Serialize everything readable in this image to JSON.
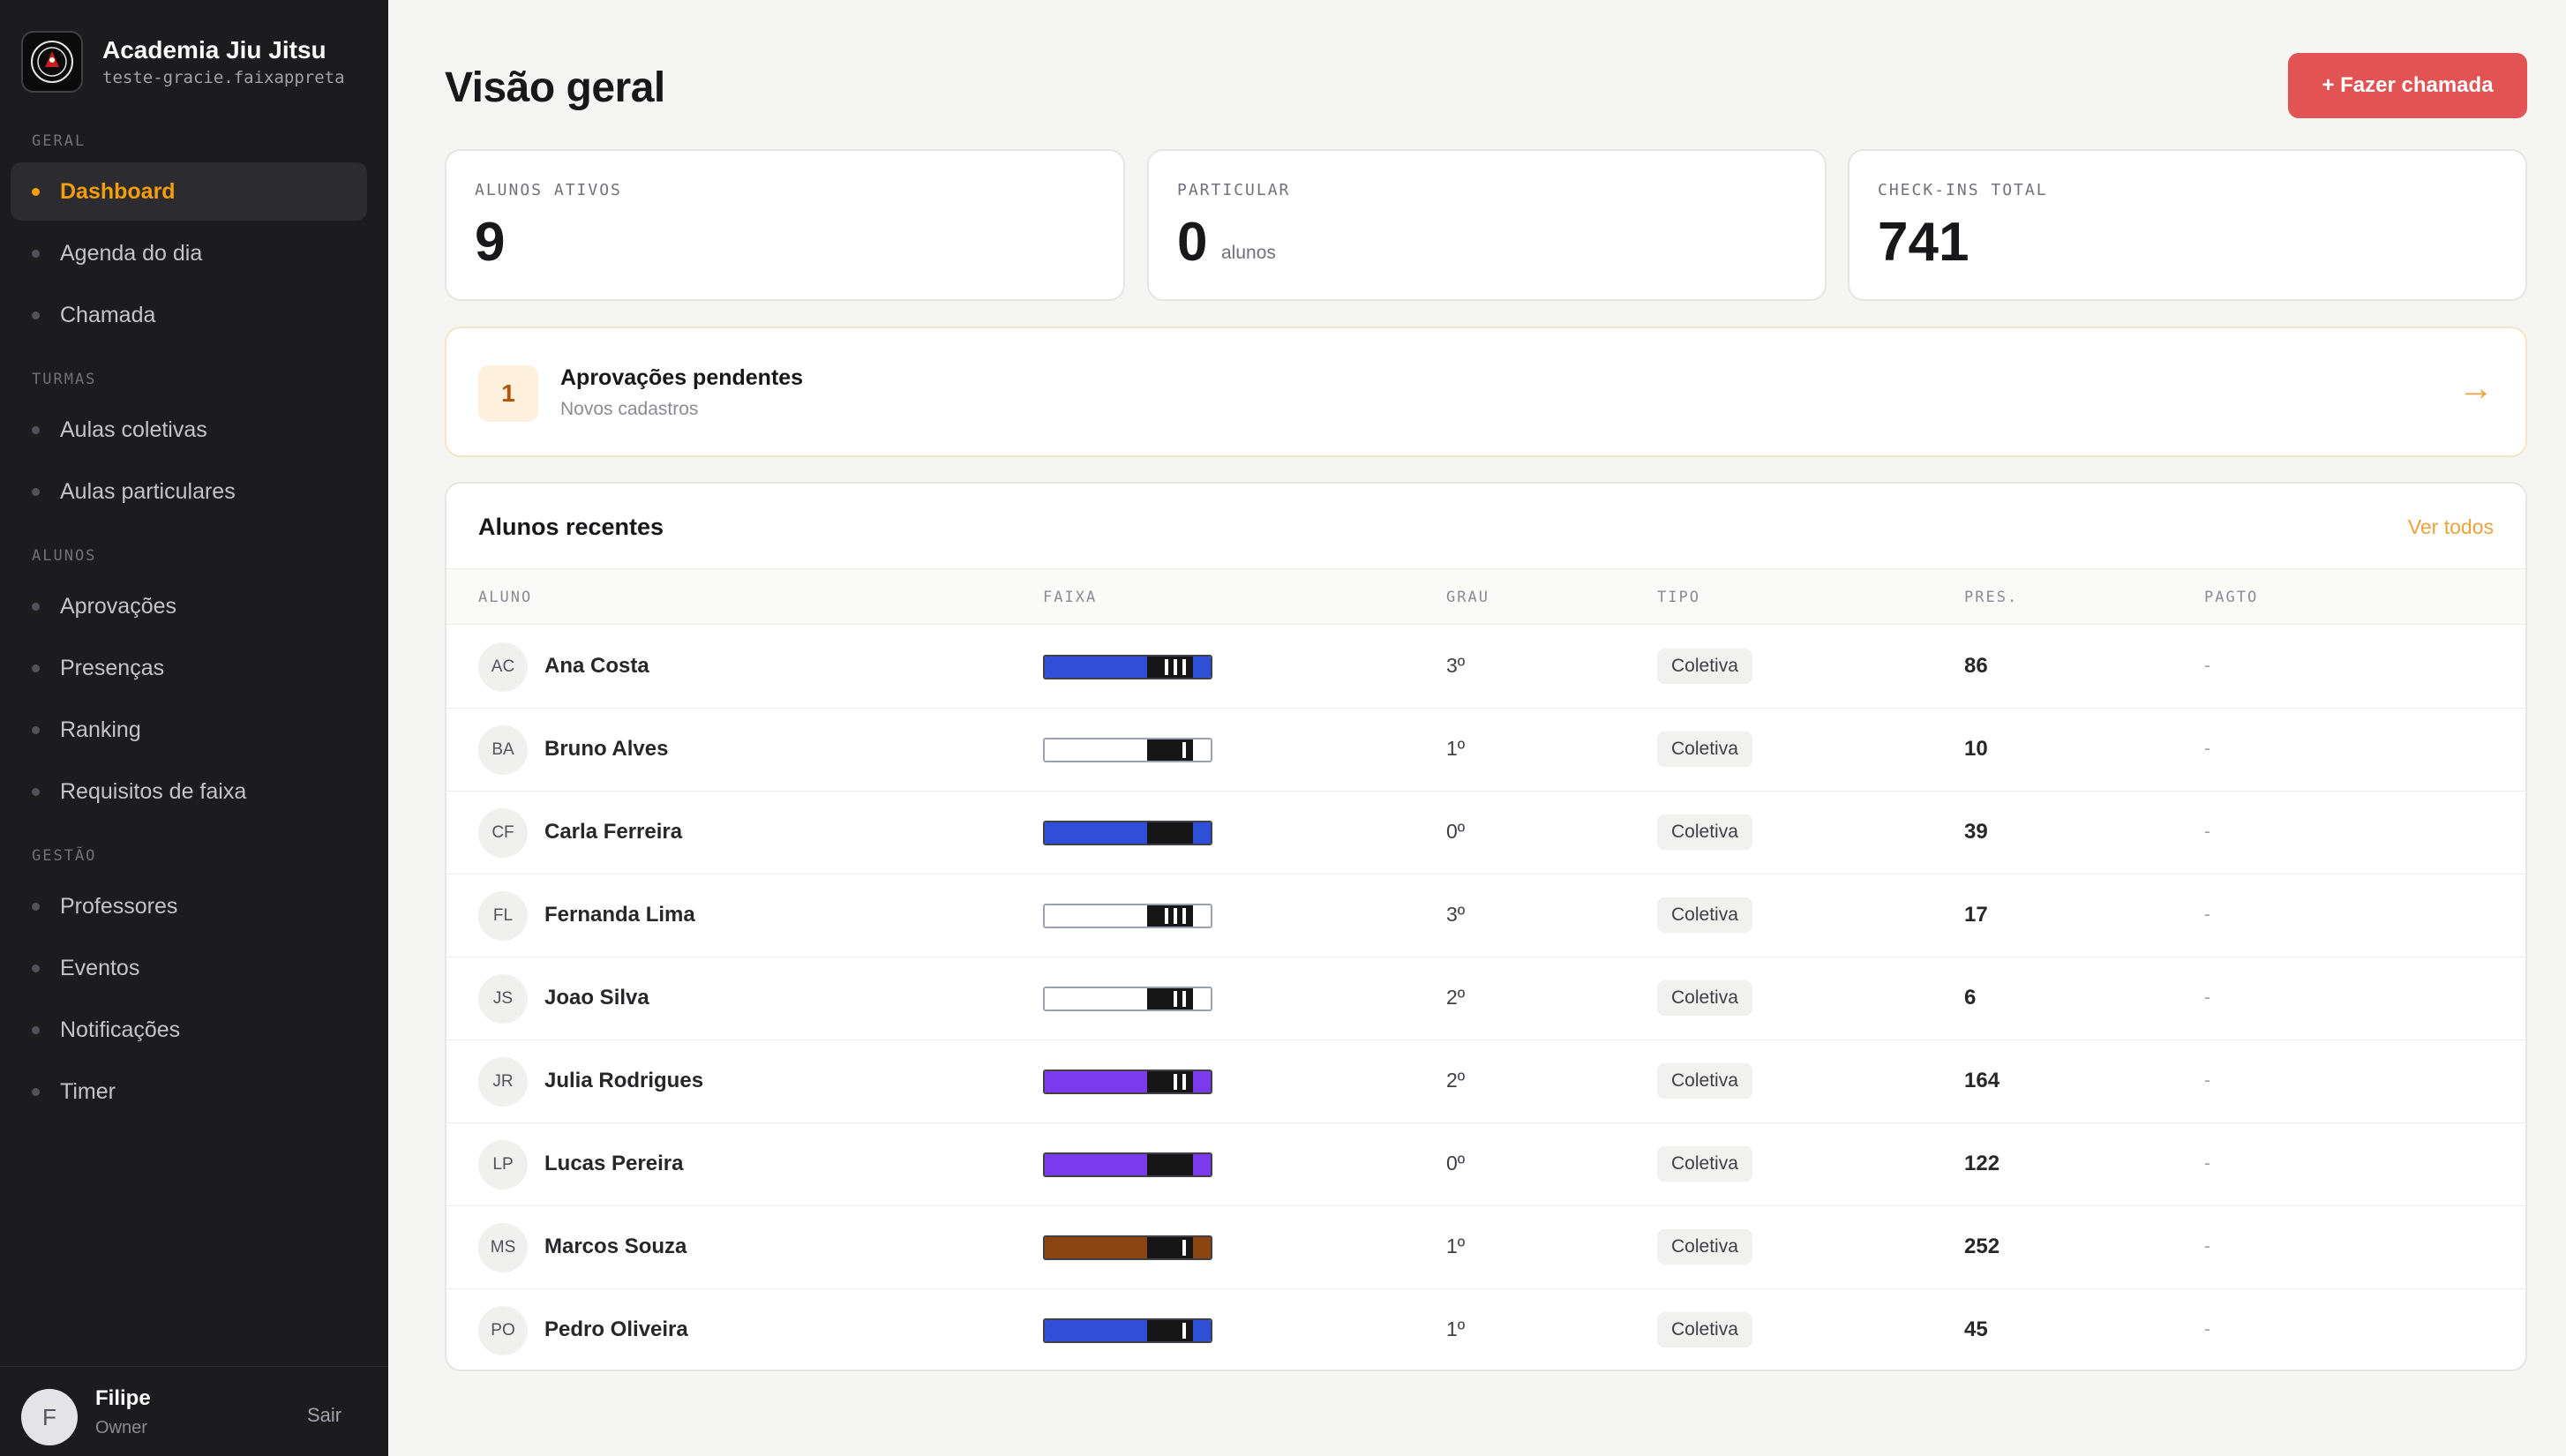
{
  "brand": {
    "name": "Academia Jiu Jitsu",
    "domain": "teste-gracie.faixappreta",
    "logo_icon": "academy-crest-icon"
  },
  "sidebar": {
    "sections": [
      {
        "label": "GERAL",
        "items": [
          {
            "label": "Dashboard",
            "active": true
          },
          {
            "label": "Agenda do dia",
            "active": false
          },
          {
            "label": "Chamada",
            "active": false
          }
        ]
      },
      {
        "label": "TURMAS",
        "items": [
          {
            "label": "Aulas coletivas",
            "active": false
          },
          {
            "label": "Aulas particulares",
            "active": false
          }
        ]
      },
      {
        "label": "ALUNOS",
        "items": [
          {
            "label": "Aprovações",
            "active": false
          },
          {
            "label": "Presenças",
            "active": false
          },
          {
            "label": "Ranking",
            "active": false
          },
          {
            "label": "Requisitos de faixa",
            "active": false
          }
        ]
      },
      {
        "label": "GESTÃO",
        "items": [
          {
            "label": "Professores",
            "active": false
          },
          {
            "label": "Eventos",
            "active": false
          },
          {
            "label": "Notificações",
            "active": false
          },
          {
            "label": "Timer",
            "active": false
          }
        ]
      }
    ]
  },
  "user": {
    "initial": "F",
    "name": "Filipe",
    "role": "Owner",
    "logout_label": "Sair"
  },
  "header": {
    "title": "Visão geral",
    "primary_action": "+ Fazer chamada"
  },
  "stats": [
    {
      "label": "ALUNOS ATIVOS",
      "value": "9",
      "unit": ""
    },
    {
      "label": "PARTICULAR",
      "value": "0",
      "unit": "alunos"
    },
    {
      "label": "CHECK-INS TOTAL",
      "value": "741",
      "unit": ""
    }
  ],
  "approvals": {
    "count": "1",
    "title": "Aprovações pendentes",
    "subtitle": "Novos cadastros",
    "arrow_icon": "arrow-right-icon",
    "arrow": "→"
  },
  "recent": {
    "title": "Alunos recentes",
    "see_all": "Ver todos",
    "columns": [
      "ALUNO",
      "FAIXA",
      "GRAU",
      "TIPO",
      "PRES.",
      "PAGTO"
    ],
    "rows": [
      {
        "initials": "AC",
        "name": "Ana Costa",
        "belt": "blue",
        "belt_color": "#2f4fd6",
        "stripes": 3,
        "grau": "3º",
        "tipo": "Coletiva",
        "pres": "86",
        "pagto": "-"
      },
      {
        "initials": "BA",
        "name": "Bruno Alves",
        "belt": "white",
        "belt_color": "#ffffff",
        "stripes": 1,
        "grau": "1º",
        "tipo": "Coletiva",
        "pres": "10",
        "pagto": "-"
      },
      {
        "initials": "CF",
        "name": "Carla Ferreira",
        "belt": "blue",
        "belt_color": "#2f4fd6",
        "stripes": 0,
        "grau": "0º",
        "tipo": "Coletiva",
        "pres": "39",
        "pagto": "-"
      },
      {
        "initials": "FL",
        "name": "Fernanda Lima",
        "belt": "white",
        "belt_color": "#ffffff",
        "stripes": 3,
        "grau": "3º",
        "tipo": "Coletiva",
        "pres": "17",
        "pagto": "-"
      },
      {
        "initials": "JS",
        "name": "Joao Silva",
        "belt": "white",
        "belt_color": "#ffffff",
        "stripes": 2,
        "grau": "2º",
        "tipo": "Coletiva",
        "pres": "6",
        "pagto": "-"
      },
      {
        "initials": "JR",
        "name": "Julia Rodrigues",
        "belt": "purple",
        "belt_color": "#7c3aed",
        "stripes": 2,
        "grau": "2º",
        "tipo": "Coletiva",
        "pres": "164",
        "pagto": "-"
      },
      {
        "initials": "LP",
        "name": "Lucas Pereira",
        "belt": "purple",
        "belt_color": "#7c3aed",
        "stripes": 0,
        "grau": "0º",
        "tipo": "Coletiva",
        "pres": "122",
        "pagto": "-"
      },
      {
        "initials": "MS",
        "name": "Marcos Souza",
        "belt": "brown",
        "belt_color": "#8b4513",
        "stripes": 1,
        "grau": "1º",
        "tipo": "Coletiva",
        "pres": "252",
        "pagto": "-"
      },
      {
        "initials": "PO",
        "name": "Pedro Oliveira",
        "belt": "blue",
        "belt_color": "#2f4fd6",
        "stripes": 1,
        "grau": "1º",
        "tipo": "Coletiva",
        "pres": "45",
        "pagto": "-"
      }
    ]
  },
  "colors": {
    "accent": "#f59e0b",
    "primary_button": "#e25353",
    "sidebar_bg": "#1c1c1e"
  }
}
